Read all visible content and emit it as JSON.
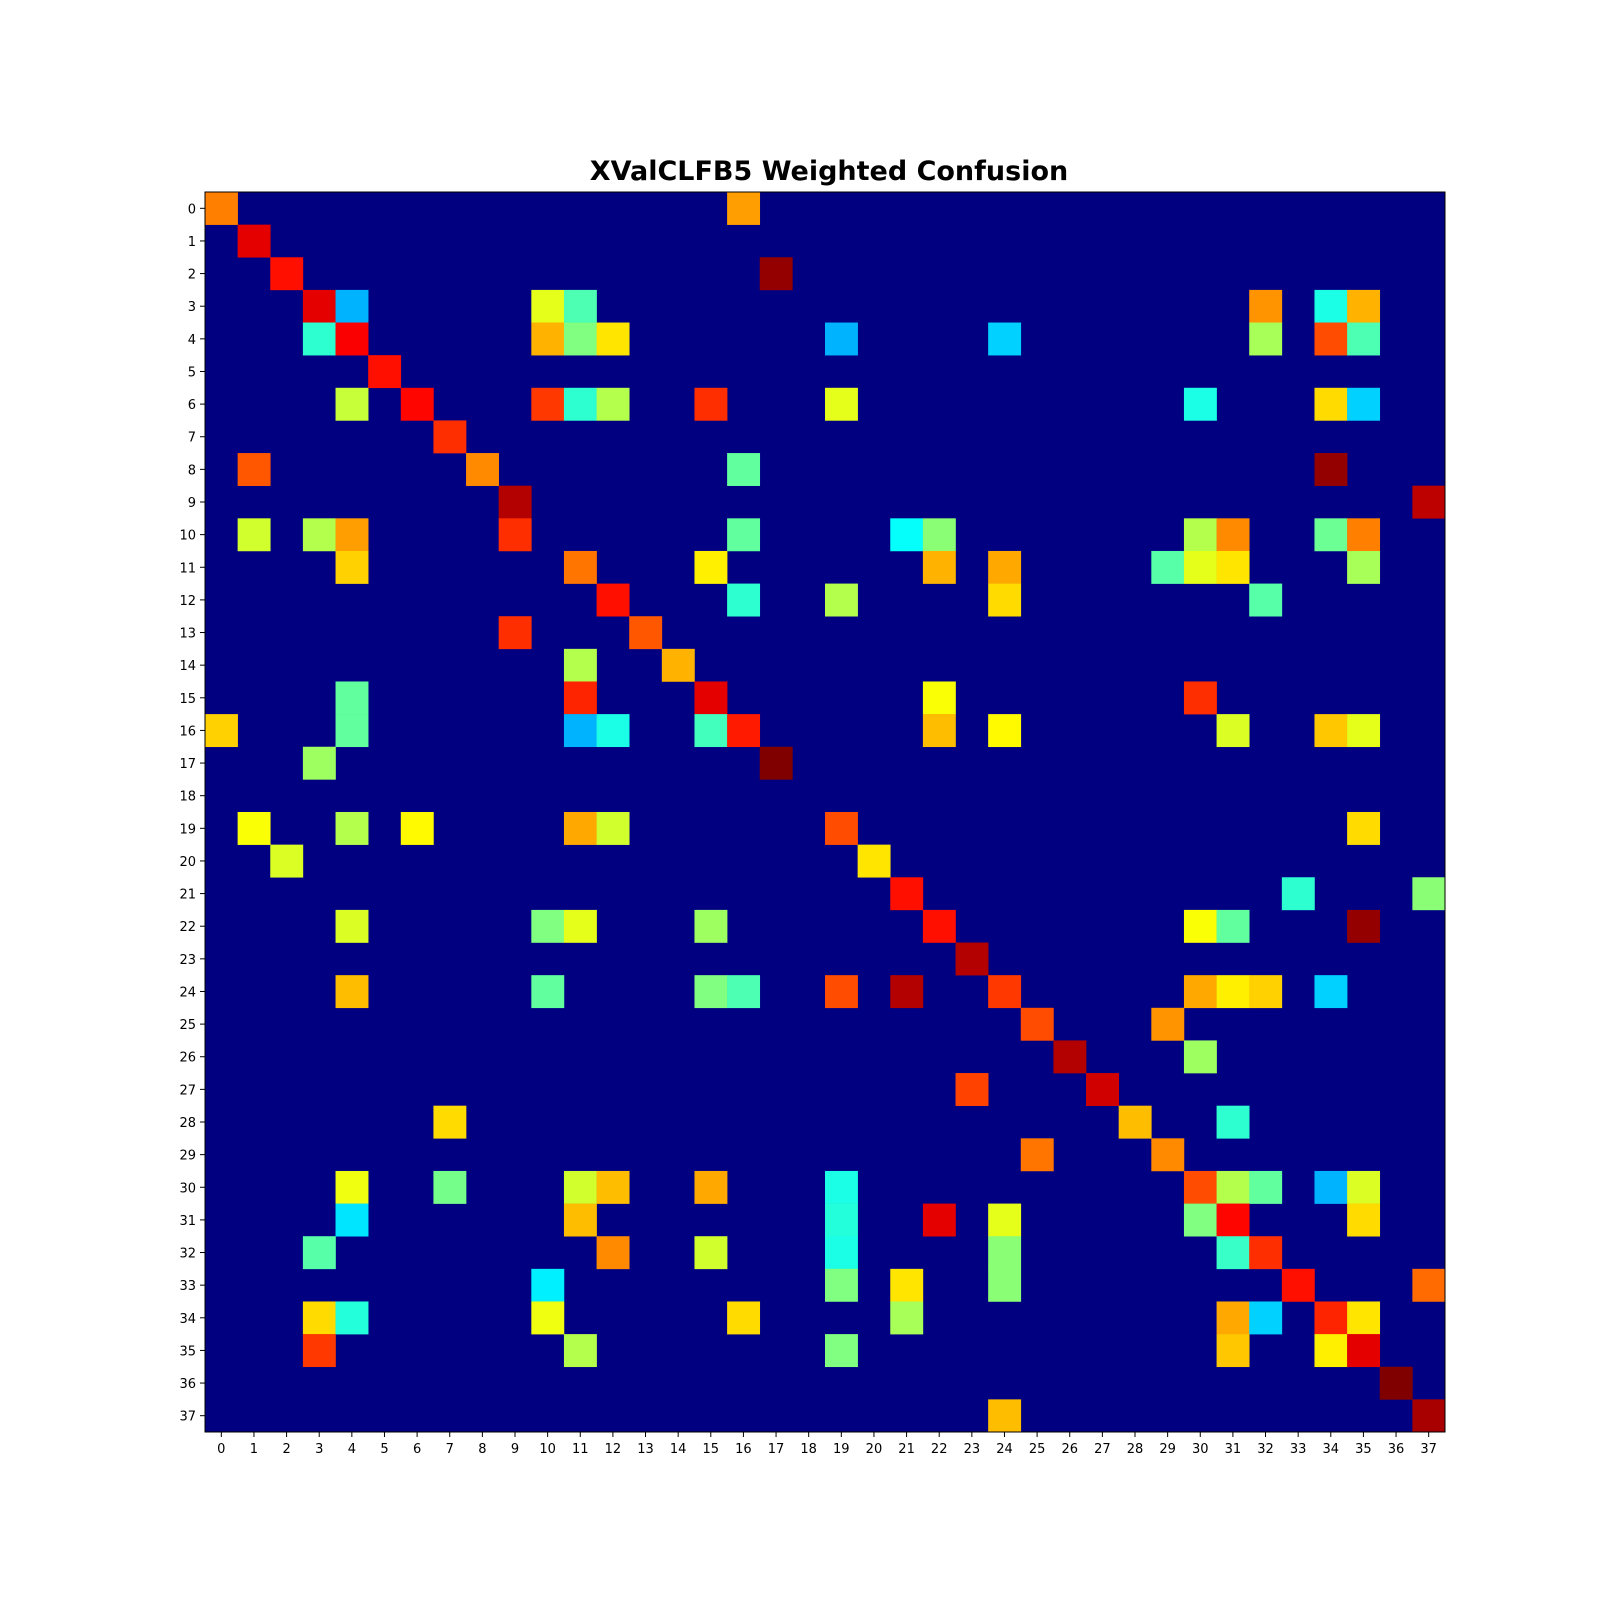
{
  "chart_data": {
    "type": "heatmap",
    "title": "XValCLFB5 Weighted Confusion",
    "xlabel": "",
    "ylabel": "",
    "colormap": "jet",
    "value_range": [
      0,
      1
    ],
    "grid": false,
    "x_ticks": [
      "0",
      "1",
      "2",
      "3",
      "4",
      "5",
      "6",
      "7",
      "8",
      "9",
      "10",
      "11",
      "12",
      "13",
      "14",
      "15",
      "16",
      "17",
      "18",
      "19",
      "20",
      "21",
      "22",
      "23",
      "24",
      "25",
      "26",
      "27",
      "28",
      "29",
      "30",
      "31",
      "32",
      "33",
      "34",
      "35",
      "36",
      "37"
    ],
    "y_ticks": [
      "0",
      "1",
      "2",
      "3",
      "4",
      "5",
      "6",
      "7",
      "8",
      "9",
      "10",
      "11",
      "12",
      "13",
      "14",
      "15",
      "16",
      "17",
      "18",
      "19",
      "20",
      "21",
      "22",
      "23",
      "24",
      "25",
      "26",
      "27",
      "28",
      "29",
      "30",
      "31",
      "32",
      "33",
      "34",
      "35",
      "36",
      "37"
    ],
    "cells": [
      [
        0,
        0,
        0.75
      ],
      [
        0,
        16,
        0.72
      ],
      [
        1,
        1,
        0.9
      ],
      [
        2,
        2,
        0.86
      ],
      [
        2,
        17,
        0.98
      ],
      [
        3,
        3,
        0.9
      ],
      [
        3,
        4,
        0.3
      ],
      [
        3,
        10,
        0.6
      ],
      [
        3,
        11,
        0.45
      ],
      [
        3,
        32,
        0.73
      ],
      [
        3,
        34,
        0.4
      ],
      [
        3,
        35,
        0.7
      ],
      [
        4,
        3,
        0.42
      ],
      [
        4,
        4,
        0.88
      ],
      [
        4,
        10,
        0.7
      ],
      [
        4,
        11,
        0.5
      ],
      [
        4,
        12,
        0.65
      ],
      [
        4,
        19,
        0.3
      ],
      [
        4,
        24,
        0.33
      ],
      [
        4,
        32,
        0.54
      ],
      [
        4,
        34,
        0.8
      ],
      [
        4,
        35,
        0.45
      ],
      [
        5,
        5,
        0.86
      ],
      [
        6,
        4,
        0.57
      ],
      [
        6,
        6,
        0.87
      ],
      [
        6,
        10,
        0.82
      ],
      [
        6,
        11,
        0.42
      ],
      [
        6,
        12,
        0.55
      ],
      [
        6,
        15,
        0.83
      ],
      [
        6,
        19,
        0.6
      ],
      [
        6,
        30,
        0.4
      ],
      [
        6,
        34,
        0.66
      ],
      [
        6,
        35,
        0.33
      ],
      [
        7,
        7,
        0.83
      ],
      [
        8,
        1,
        0.79
      ],
      [
        8,
        8,
        0.74
      ],
      [
        8,
        16,
        0.47
      ],
      [
        8,
        34,
        0.98
      ],
      [
        9,
        9,
        0.95
      ],
      [
        9,
        37,
        0.94
      ],
      [
        10,
        1,
        0.58
      ],
      [
        10,
        3,
        0.55
      ],
      [
        10,
        4,
        0.72
      ],
      [
        10,
        9,
        0.83
      ],
      [
        10,
        16,
        0.47
      ],
      [
        10,
        21,
        0.38
      ],
      [
        10,
        22,
        0.51
      ],
      [
        10,
        30,
        0.55
      ],
      [
        10,
        31,
        0.74
      ],
      [
        10,
        34,
        0.48
      ],
      [
        10,
        35,
        0.75
      ],
      [
        11,
        4,
        0.67
      ],
      [
        11,
        11,
        0.76
      ],
      [
        11,
        15,
        0.64
      ],
      [
        11,
        22,
        0.7
      ],
      [
        11,
        24,
        0.71
      ],
      [
        11,
        29,
        0.46
      ],
      [
        11,
        30,
        0.6
      ],
      [
        11,
        31,
        0.65
      ],
      [
        11,
        35,
        0.54
      ],
      [
        12,
        12,
        0.86
      ],
      [
        12,
        16,
        0.42
      ],
      [
        12,
        19,
        0.55
      ],
      [
        12,
        24,
        0.66
      ],
      [
        12,
        32,
        0.46
      ],
      [
        13,
        9,
        0.83
      ],
      [
        13,
        13,
        0.79
      ],
      [
        14,
        11,
        0.55
      ],
      [
        14,
        14,
        0.7
      ],
      [
        15,
        4,
        0.47
      ],
      [
        15,
        11,
        0.84
      ],
      [
        15,
        15,
        0.9
      ],
      [
        15,
        22,
        0.62
      ],
      [
        15,
        30,
        0.83
      ],
      [
        16,
        0,
        0.67
      ],
      [
        16,
        4,
        0.47
      ],
      [
        16,
        11,
        0.3
      ],
      [
        16,
        12,
        0.4
      ],
      [
        16,
        15,
        0.44
      ],
      [
        16,
        16,
        0.85
      ],
      [
        16,
        22,
        0.69
      ],
      [
        16,
        24,
        0.63
      ],
      [
        16,
        31,
        0.59
      ],
      [
        16,
        34,
        0.68
      ],
      [
        16,
        35,
        0.6
      ],
      [
        17,
        3,
        0.53
      ],
      [
        17,
        17,
        1.0
      ],
      [
        19,
        1,
        0.62
      ],
      [
        19,
        4,
        0.55
      ],
      [
        19,
        6,
        0.63
      ],
      [
        19,
        11,
        0.71
      ],
      [
        19,
        12,
        0.58
      ],
      [
        19,
        19,
        0.8
      ],
      [
        19,
        35,
        0.66
      ],
      [
        20,
        2,
        0.59
      ],
      [
        20,
        20,
        0.65
      ],
      [
        21,
        21,
        0.86
      ],
      [
        21,
        33,
        0.42
      ],
      [
        21,
        37,
        0.51
      ],
      [
        22,
        4,
        0.59
      ],
      [
        22,
        10,
        0.5
      ],
      [
        22,
        11,
        0.6
      ],
      [
        22,
        15,
        0.53
      ],
      [
        22,
        22,
        0.86
      ],
      [
        22,
        30,
        0.62
      ],
      [
        22,
        31,
        0.47
      ],
      [
        22,
        35,
        0.98
      ],
      [
        23,
        23,
        0.95
      ],
      [
        24,
        4,
        0.69
      ],
      [
        24,
        10,
        0.47
      ],
      [
        24,
        15,
        0.5
      ],
      [
        24,
        16,
        0.45
      ],
      [
        24,
        19,
        0.8
      ],
      [
        24,
        21,
        0.95
      ],
      [
        24,
        24,
        0.82
      ],
      [
        24,
        30,
        0.71
      ],
      [
        24,
        31,
        0.64
      ],
      [
        24,
        32,
        0.67
      ],
      [
        24,
        34,
        0.33
      ],
      [
        25,
        25,
        0.8
      ],
      [
        25,
        29,
        0.73
      ],
      [
        26,
        26,
        0.95
      ],
      [
        26,
        30,
        0.53
      ],
      [
        27,
        23,
        0.81
      ],
      [
        27,
        27,
        0.92
      ],
      [
        28,
        7,
        0.66
      ],
      [
        28,
        28,
        0.69
      ],
      [
        28,
        31,
        0.42
      ],
      [
        29,
        25,
        0.76
      ],
      [
        29,
        29,
        0.74
      ],
      [
        30,
        4,
        0.61
      ],
      [
        30,
        7,
        0.49
      ],
      [
        30,
        11,
        0.58
      ],
      [
        30,
        12,
        0.69
      ],
      [
        30,
        15,
        0.71
      ],
      [
        30,
        19,
        0.4
      ],
      [
        30,
        30,
        0.8
      ],
      [
        30,
        31,
        0.55
      ],
      [
        30,
        32,
        0.47
      ],
      [
        30,
        34,
        0.3
      ],
      [
        30,
        35,
        0.59
      ],
      [
        31,
        4,
        0.35
      ],
      [
        31,
        11,
        0.69
      ],
      [
        31,
        19,
        0.41
      ],
      [
        31,
        22,
        0.9
      ],
      [
        31,
        24,
        0.6
      ],
      [
        31,
        30,
        0.5
      ],
      [
        31,
        31,
        0.87
      ],
      [
        31,
        35,
        0.66
      ],
      [
        32,
        3,
        0.46
      ],
      [
        32,
        12,
        0.74
      ],
      [
        32,
        15,
        0.58
      ],
      [
        32,
        19,
        0.4
      ],
      [
        32,
        24,
        0.51
      ],
      [
        32,
        31,
        0.43
      ],
      [
        32,
        32,
        0.83
      ],
      [
        33,
        10,
        0.36
      ],
      [
        33,
        19,
        0.5
      ],
      [
        33,
        21,
        0.65
      ],
      [
        33,
        24,
        0.51
      ],
      [
        33,
        33,
        0.86
      ],
      [
        33,
        37,
        0.77
      ],
      [
        34,
        3,
        0.66
      ],
      [
        34,
        4,
        0.41
      ],
      [
        34,
        10,
        0.61
      ],
      [
        34,
        16,
        0.66
      ],
      [
        34,
        21,
        0.54
      ],
      [
        34,
        31,
        0.71
      ],
      [
        34,
        32,
        0.33
      ],
      [
        34,
        34,
        0.84
      ],
      [
        34,
        35,
        0.65
      ],
      [
        35,
        3,
        0.82
      ],
      [
        35,
        11,
        0.55
      ],
      [
        35,
        19,
        0.5
      ],
      [
        35,
        31,
        0.68
      ],
      [
        35,
        34,
        0.64
      ],
      [
        35,
        35,
        0.9
      ],
      [
        36,
        36,
        1.0
      ],
      [
        37,
        24,
        0.69
      ],
      [
        37,
        37,
        0.96
      ]
    ]
  }
}
